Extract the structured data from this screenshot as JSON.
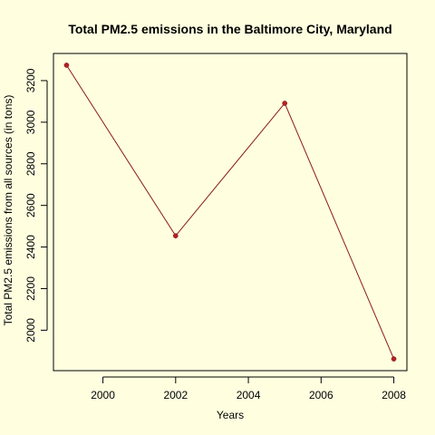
{
  "chart_data": {
    "type": "line",
    "title": "Total PM2.5 emissions in the Baltimore City, Maryland",
    "xlabel": "Years",
    "ylabel": "Total PM2.5 emissions from all sources (in tons)",
    "x": [
      1999,
      2002,
      2005,
      2008
    ],
    "series": [
      {
        "values": [
          3274,
          2454,
          3091,
          1862
        ]
      }
    ],
    "xlim": [
      1999,
      2008
    ],
    "ylim": [
      1862,
      3274
    ],
    "xticks": [
      2000,
      2002,
      2004,
      2006,
      2008
    ],
    "yticks": [
      2000,
      2200,
      2400,
      2600,
      2800,
      3000,
      3200
    ],
    "grid": false,
    "legend": "none",
    "colors": {
      "background": "#FFFFE0",
      "line": "#8B1A1A",
      "point": "#B22222",
      "axis": "#000000"
    }
  }
}
